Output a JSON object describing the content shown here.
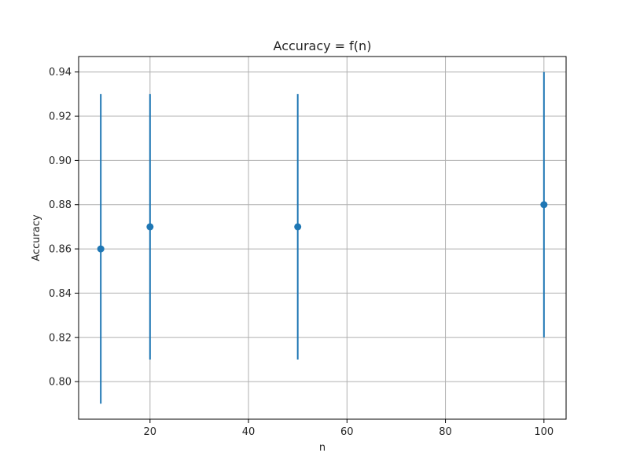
{
  "chart_data": {
    "type": "scatter",
    "title": "Accuracy = f(n)",
    "xlabel": "n",
    "ylabel": "Accuracy",
    "xlim": [
      5.5,
      104.5
    ],
    "ylim": [
      0.783,
      0.947
    ],
    "xticks": [
      20,
      40,
      60,
      80,
      100
    ],
    "yticks": [
      0.8,
      0.82,
      0.84,
      0.86,
      0.88,
      0.9,
      0.92,
      0.94
    ],
    "grid": true,
    "series": [
      {
        "color": "#1f77b4",
        "points": [
          {
            "x": 10,
            "y": 0.86,
            "ymin": 0.79,
            "ymax": 0.93
          },
          {
            "x": 20,
            "y": 0.87,
            "ymin": 0.81,
            "ymax": 0.93
          },
          {
            "x": 50,
            "y": 0.87,
            "ymin": 0.81,
            "ymax": 0.93
          },
          {
            "x": 100,
            "y": 0.88,
            "ymin": 0.82,
            "ymax": 0.94
          }
        ]
      }
    ]
  }
}
